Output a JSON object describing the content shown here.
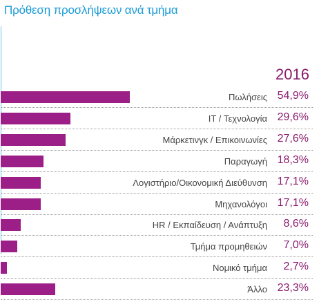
{
  "page": {
    "title": "Πρόθεση προσλήψεων ανά τμήμα",
    "year": "2016"
  },
  "colors": {
    "bar": "#9c1f87",
    "value_text": "#8a1a6e",
    "title": "#1a9bd7"
  },
  "chart_data": {
    "type": "bar",
    "orientation": "horizontal",
    "title": "Πρόθεση προσλήψεων ανά τμήμα",
    "series": [
      {
        "name": "2016",
        "values": [
          54.9,
          29.6,
          27.6,
          18.3,
          17.1,
          17.1,
          8.6,
          7.0,
          2.7,
          23.3
        ]
      }
    ],
    "categories": [
      "Πωλήσεις",
      "IT / Τεχνολογία",
      "Μάρκετινγκ / Επικοινωνίες",
      "Παραγωγή",
      "Λογιστήριο/Οικονομική Διεύθυνση",
      "Μηχανολόγοι",
      "HR / Εκπαίδευση / Ανάπτυξη",
      "Τμήμα προμηθειών",
      "Νομικό τμήμα",
      "Άλλο"
    ],
    "value_labels": [
      "54,9%",
      "29,6%",
      "27,6%",
      "18,3%",
      "17,1%",
      "17,1%",
      "8,6%",
      "7,0%",
      "2,7%",
      "23,3%"
    ],
    "unit": "%",
    "xlim": [
      0,
      100
    ],
    "grid": false
  }
}
